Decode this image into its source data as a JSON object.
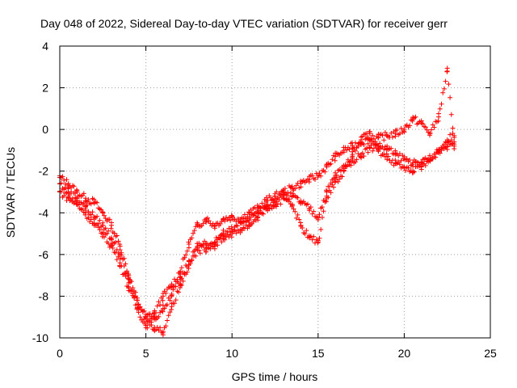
{
  "chart_data": {
    "type": "scatter",
    "title": "Day 048 of 2022, Sidereal Day-to-day VTEC variation (SDTVAR) for receiver gerr",
    "xlabel": "GPS time / hours",
    "ylabel": "SDTVAR / TECUs",
    "xlim": [
      0,
      25
    ],
    "ylim": [
      -10,
      4
    ],
    "xticks": [
      0,
      5,
      10,
      15,
      20,
      25
    ],
    "yticks": [
      -10,
      -8,
      -6,
      -4,
      -2,
      0,
      2,
      4
    ],
    "xtick_labels": [
      "0",
      "5",
      "10",
      "15",
      "20",
      "25"
    ],
    "ytick_labels": [
      "-10",
      "-8",
      "-6",
      "-4",
      "-2",
      "0",
      "2",
      "4"
    ],
    "grid": true,
    "marker": "+",
    "series": [
      {
        "name": "trace-a",
        "color": "#ff0000",
        "x": [
          0.0,
          0.5,
          1.0,
          1.5,
          2.0,
          2.5,
          3.0,
          3.5,
          4.0,
          4.5,
          5.0,
          5.5,
          6.0,
          6.5,
          7.0,
          7.5,
          8.0,
          8.5,
          9.0,
          9.5,
          10.0,
          10.5,
          11.0,
          11.5,
          12.0,
          12.5,
          13.0,
          13.5,
          14.0,
          14.5,
          15.0,
          15.5,
          16.0,
          16.5,
          17.0,
          17.5,
          18.0,
          18.5,
          19.0,
          19.5,
          20.0,
          20.5,
          21.0,
          21.5,
          22.0,
          22.5,
          22.9
        ],
        "y": [
          -2.3,
          -2.6,
          -3.0,
          -3.3,
          -3.5,
          -4.0,
          -4.6,
          -5.6,
          -7.0,
          -8.2,
          -9.0,
          -8.8,
          -8.0,
          -7.5,
          -6.8,
          -5.5,
          -4.6,
          -4.3,
          -4.6,
          -4.3,
          -4.2,
          -4.3,
          -4.0,
          -3.8,
          -3.4,
          -3.2,
          -3.0,
          -2.8,
          -2.6,
          -2.4,
          -2.2,
          -1.8,
          -1.3,
          -1.0,
          -0.8,
          -0.6,
          -0.5,
          -0.4,
          -0.3,
          -0.2,
          0.0,
          0.5,
          0.3,
          -0.2,
          0.6,
          2.8,
          -0.8
        ]
      },
      {
        "name": "trace-b",
        "color": "#ff0000",
        "x": [
          0.0,
          0.5,
          1.0,
          1.5,
          2.0,
          2.5,
          3.0,
          3.5,
          4.0,
          4.5,
          5.0,
          5.5,
          6.0,
          6.5,
          7.0,
          7.5,
          8.0,
          8.5,
          9.0,
          9.5,
          10.0,
          10.5,
          11.0,
          11.5,
          12.0,
          12.5,
          13.0,
          13.5,
          14.0,
          14.5,
          15.0,
          15.5,
          16.0,
          16.5,
          17.0,
          17.5,
          18.0,
          18.5,
          19.0,
          19.5,
          20.0,
          20.5,
          21.0,
          21.5,
          22.0,
          22.5,
          22.9
        ],
        "y": [
          -3.0,
          -3.3,
          -3.6,
          -4.0,
          -4.6,
          -5.0,
          -5.6,
          -6.4,
          -7.6,
          -8.6,
          -9.4,
          -9.1,
          -8.6,
          -7.9,
          -7.2,
          -6.3,
          -5.6,
          -5.5,
          -5.6,
          -5.0,
          -4.8,
          -4.5,
          -4.3,
          -4.0,
          -3.7,
          -3.6,
          -3.3,
          -3.2,
          -3.5,
          -3.8,
          -4.2,
          -3.0,
          -2.2,
          -1.8,
          -1.5,
          -1.2,
          -0.9,
          -0.8,
          -0.9,
          -1.2,
          -1.4,
          -1.6,
          -1.8,
          -1.5,
          -1.0,
          -0.8,
          -0.6
        ]
      },
      {
        "name": "trace-c",
        "color": "#ff0000",
        "x": [
          0.0,
          0.5,
          1.0,
          1.5,
          2.0,
          2.5,
          3.0,
          3.5,
          4.0,
          4.5,
          5.0,
          5.5,
          6.0,
          6.5,
          7.0,
          7.5,
          8.0,
          8.5,
          9.0,
          9.5,
          10.0,
          10.5,
          11.0,
          11.5,
          12.0,
          12.5,
          13.0,
          13.5,
          14.0,
          14.5,
          15.0,
          15.5,
          16.0,
          16.5,
          17.0,
          17.5,
          18.0,
          18.5,
          19.0,
          19.5,
          20.0,
          20.5,
          21.0,
          21.5,
          22.0,
          22.5,
          22.9
        ],
        "y": [
          -2.6,
          -3.0,
          -3.3,
          -3.7,
          -4.2,
          -4.6,
          -5.2,
          -6.0,
          -7.2,
          -8.4,
          -9.1,
          -9.5,
          -9.7,
          -8.5,
          -7.5,
          -6.5,
          -5.8,
          -5.7,
          -5.4,
          -5.2,
          -5.0,
          -4.8,
          -4.6,
          -4.2,
          -3.8,
          -3.4,
          -3.1,
          -3.6,
          -4.6,
          -5.2,
          -5.4,
          -3.2,
          -2.5,
          -2.0,
          -1.2,
          -0.5,
          -0.2,
          -1.0,
          -1.3,
          -1.6,
          -1.8,
          -2.0,
          -1.6,
          -1.4,
          -1.0,
          -0.5,
          -0.3
        ]
      }
    ]
  }
}
